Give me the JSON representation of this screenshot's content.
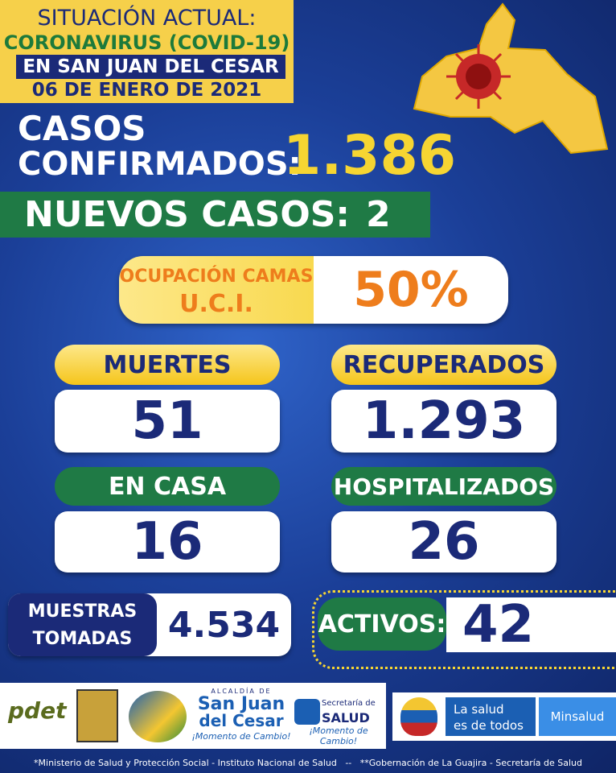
{
  "header": {
    "line1": "SITUACIÓN ACTUAL:",
    "line2": "CORONAVIRUS (COVID-19)",
    "line3": "EN SAN JUAN DEL CESAR",
    "date": "06 DE ENERO DE 2021"
  },
  "confirmed": {
    "label_line1": "CASOS",
    "label_line2": "CONFIRMADOS:",
    "value": "1.386"
  },
  "new_cases": {
    "label": "NUEVOS CASOS:",
    "value": "2"
  },
  "icu": {
    "label_line1": "OCUPACIÓN CAMAS",
    "label_line2": "U.C.I.",
    "value": "50%"
  },
  "stats": [
    {
      "label": "MUERTES",
      "value": "51"
    },
    {
      "label": "RECUPERADOS",
      "value": "1.293"
    },
    {
      "label": "EN CASA",
      "value": "16"
    },
    {
      "label": "HOSPITALIZADOS",
      "value": "26"
    }
  ],
  "samples": {
    "label_line1": "MUESTRAS",
    "label_line2": "TOMADAS",
    "value": "4.534"
  },
  "active": {
    "label": "ACTIVOS:",
    "value": "42"
  },
  "logos": {
    "pdet": "pdet",
    "alcaldia": "ALCALDÍA DE",
    "town1": "San Juan",
    "town2": "del Cesar",
    "slogan": "¡Momento de Cambio!",
    "secretaria": "Secretaría de",
    "salud": "SALUD",
    "lasalud1": "La salud",
    "lasalud2": "es de todos",
    "minsalud": "Minsalud"
  },
  "footer": "*Ministerio de Salud y Protección Social - Instituto Nacional de Salud   --   **Gobernación de La Guajira - Secretaría de Salud"
}
